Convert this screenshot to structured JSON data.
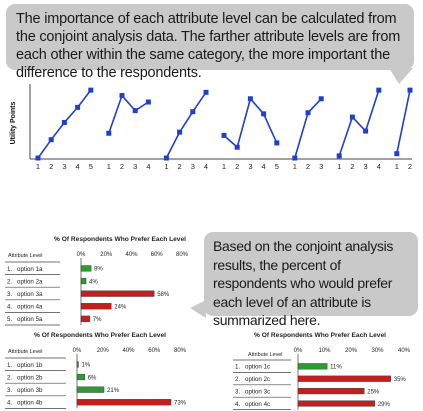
{
  "intro_text": "The importance of each attribute level can be calculated from the conjoint analysis data. The farther attribute levels are from each other within the same category, the more important the difference to the respondents.",
  "summary_text": "Based on the conjoint analysis results, the percent of respondents who would prefer each level of an attribute is summarized here.",
  "colors": {
    "line": "#1f3fd0",
    "bar_red": "#c41f1f",
    "bar_green": "#2f9a2f",
    "bubble": "#c9c9c9"
  },
  "chart_data": [
    {
      "type": "line",
      "ylabel": "Utility Points",
      "series": [
        {
          "x": [
            "1",
            "2",
            "3",
            "4",
            "5"
          ],
          "values": [
            0,
            17,
            33,
            47,
            63
          ]
        },
        {
          "x": [
            "1",
            "2",
            "3",
            "4"
          ],
          "values": [
            23,
            58,
            44,
            52
          ]
        },
        {
          "x": [
            "1",
            "2",
            "3",
            "4"
          ],
          "values": [
            0,
            24,
            43,
            61
          ]
        },
        {
          "x": [
            "1",
            "2",
            "3",
            "4",
            "5"
          ],
          "values": [
            21,
            10,
            55,
            41,
            14
          ]
        },
        {
          "x": [
            "1",
            "2",
            "3"
          ],
          "values": [
            0,
            42,
            55
          ]
        },
        {
          "x": [
            "1",
            "2",
            "3",
            "4"
          ],
          "values": [
            2,
            38,
            25,
            63
          ]
        },
        {
          "x": [
            "1",
            "2"
          ],
          "values": [
            4,
            63
          ]
        }
      ]
    },
    {
      "type": "bar",
      "title": "% Of Respondents Who Prefer Each Level",
      "header": "Attribute Level",
      "ticks": [
        "0%",
        "20%",
        "40%",
        "60%",
        "80%"
      ],
      "xlim": [
        0,
        80
      ],
      "categories": [
        "option 1a",
        "option 2a",
        "option 3a",
        "option 4a",
        "option 5a"
      ],
      "values": [
        8,
        4,
        58,
        24,
        7
      ],
      "labels": [
        "8%",
        "4%",
        "58%",
        "24%",
        "7%"
      ],
      "bar_colors": [
        "green",
        "green",
        "red",
        "red",
        "red"
      ]
    },
    {
      "type": "bar",
      "title": "% Of Respondents Who Prefer Each Level",
      "header": "Attribute Level",
      "ticks": [
        "0%",
        "20%",
        "40%",
        "60%",
        "80%"
      ],
      "xlim": [
        0,
        80
      ],
      "categories": [
        "option 1b",
        "option 2b",
        "option 3b",
        "option 4b"
      ],
      "values": [
        1,
        6,
        21,
        73
      ],
      "labels": [
        "1%",
        "6%",
        "21%",
        "73%"
      ],
      "bar_colors": [
        "green",
        "green",
        "green",
        "red"
      ]
    },
    {
      "type": "bar",
      "title": "% Of Respondents Who Prefer Each Level",
      "header": "Attribute Level",
      "ticks": [
        "0%",
        "10%",
        "20%",
        "30%",
        "40%"
      ],
      "xlim": [
        0,
        40
      ],
      "categories": [
        "option 1c",
        "option 2c",
        "option 3c",
        "option 4c"
      ],
      "values": [
        11,
        35,
        25,
        29
      ],
      "labels": [
        "11%",
        "35%",
        "25%",
        "29%"
      ],
      "bar_colors": [
        "green",
        "red",
        "red",
        "red"
      ]
    }
  ]
}
